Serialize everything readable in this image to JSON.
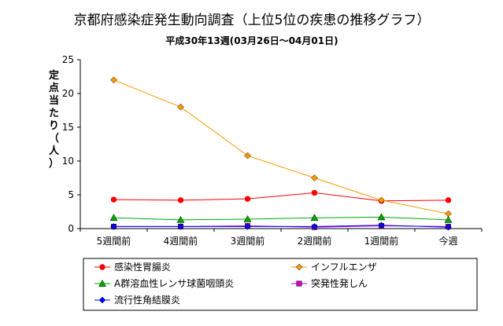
{
  "chart_data": {
    "type": "line",
    "title": "京都府感染症発生動向調査（上位5位の疾患の推移グラフ）",
    "subtitle": "平成30年13週(03月26日～04月01日)",
    "ylabel": "定点当たり（人）",
    "xlabel": "",
    "categories": [
      "5週間前",
      "4週間前",
      "3週間前",
      "2週間前",
      "1週間前",
      "今週"
    ],
    "ylim": [
      0,
      25
    ],
    "yticks": [
      0,
      5,
      10,
      15,
      20,
      25
    ],
    "grid": false,
    "legend_position": "bottom",
    "series": [
      {
        "name": "感染性胃腸炎",
        "color": "#ff0000",
        "marker": "circle",
        "values": [
          4.3,
          4.2,
          4.4,
          5.3,
          4.1,
          4.2
        ]
      },
      {
        "name": "インフルエンザ",
        "color": "#ff9900",
        "marker": "diamond",
        "values": [
          22.0,
          18.0,
          10.8,
          7.5,
          4.2,
          2.2
        ]
      },
      {
        "name": "A群溶血性レンサ球菌咽頭炎",
        "color": "#00aa00",
        "marker": "triangle",
        "values": [
          1.6,
          1.3,
          1.4,
          1.6,
          1.7,
          1.3
        ]
      },
      {
        "name": "突発性発しん",
        "color": "#cc00cc",
        "marker": "square",
        "values": [
          0.3,
          0.3,
          0.4,
          0.2,
          0.4,
          0.3
        ]
      },
      {
        "name": "流行性角結膜炎",
        "color": "#0000ff",
        "marker": "diamond",
        "values": [
          0.3,
          0.3,
          0.3,
          0.3,
          0.5,
          0.2
        ]
      }
    ]
  }
}
